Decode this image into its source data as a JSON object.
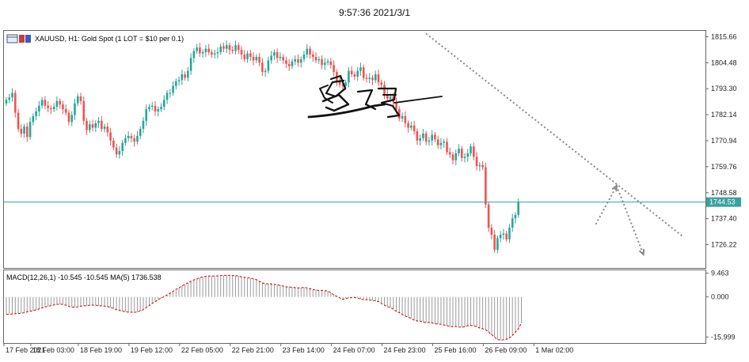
{
  "window": {
    "timestamp": "9:57:36 2021/3/1"
  },
  "chart_header": {
    "symbol_label": "XAUUSD, H1:  Gold Spot (1 LOT = $10 per 0.1)",
    "macd_label": "MACD(12,26,1) -10.545 -10.545 MA(5) 1736.538",
    "current_price_label": "1744.53"
  },
  "icons": {
    "chart_icon": "chart-window-icon"
  },
  "colors": {
    "bull": "#26a69a",
    "bear": "#ef5350",
    "current_line": "#3aa0a0",
    "trendline": "#888888",
    "macd_signal": "#cc0000",
    "macd_hist": "#9a9a9a"
  },
  "chart_data": [
    {
      "type": "candlestick",
      "title": "XAUUSD, H1:  Gold Spot (1 LOT = $10 per 0.1)",
      "y_ticks": [
        "1815.66",
        "1804.48",
        "1793.30",
        "1782.14",
        "1770.94",
        "1759.76",
        "1748.58",
        "1737.40",
        "1726.22"
      ],
      "y_tick_values": [
        1815.66,
        1804.48,
        1793.3,
        1782.14,
        1770.94,
        1759.76,
        1748.58,
        1737.4,
        1726.22
      ],
      "ylim": [
        1716.2,
        1818.2
      ],
      "x_ticks": [
        "17 Feb 2021",
        "18 Feb 03:00",
        "18 Feb 19:00",
        "19 Feb 12:00",
        "22 Feb 05:00",
        "22 Feb 21:00",
        "23 Feb 14:00",
        "24 Feb 07:00",
        "24 Feb 23:00",
        "25 Feb 16:00",
        "26 Feb 09:00",
        "1 Mar 02:00"
      ],
      "x_tick_bar_index": [
        0,
        9,
        25,
        42,
        59,
        76,
        93,
        110,
        127,
        144,
        161,
        178
      ],
      "current_price": 1744.53,
      "close_series": [
        1788.5,
        1789.5,
        1791.5,
        1783.0,
        1776.0,
        1774.0,
        1777.0,
        1772.5,
        1779.0,
        1781.5,
        1783.5,
        1786.0,
        1788.5,
        1786.0,
        1785.0,
        1784.5,
        1785.5,
        1788.0,
        1786.5,
        1784.5,
        1783.0,
        1779.0,
        1782.0,
        1787.0,
        1790.0,
        1788.0,
        1779.5,
        1775.5,
        1778.0,
        1776.5,
        1778.5,
        1779.5,
        1776.0,
        1777.0,
        1774.5,
        1771.0,
        1768.0,
        1765.0,
        1766.5,
        1770.0,
        1772.0,
        1773.0,
        1772.0,
        1770.5,
        1773.0,
        1776.0,
        1779.5,
        1784.5,
        1785.5,
        1786.0,
        1783.5,
        1784.5,
        1785.5,
        1788.5,
        1791.5,
        1791.5,
        1794.5,
        1796.5,
        1797.0,
        1799.5,
        1798.0,
        1801.0,
        1806.5,
        1809.5,
        1811.0,
        1808.5,
        1809.0,
        1810.5,
        1809.0,
        1808.0,
        1808.5,
        1809.0,
        1811.5,
        1810.5,
        1812.0,
        1810.0,
        1809.5,
        1812.0,
        1810.0,
        1808.0,
        1806.0,
        1808.5,
        1807.0,
        1805.5,
        1807.0,
        1804.5,
        1800.5,
        1801.0,
        1805.5,
        1807.5,
        1809.0,
        1806.5,
        1807.0,
        1805.5,
        1804.0,
        1803.0,
        1805.0,
        1806.0,
        1804.5,
        1806.0,
        1808.0,
        1810.5,
        1808.0,
        1807.0,
        1805.5,
        1806.0,
        1803.5,
        1804.5,
        1805.0,
        1803.5,
        1800.5,
        1796.5,
        1795.0,
        1794.5,
        1796.0,
        1801.0,
        1799.5,
        1798.5,
        1801.0,
        1802.5,
        1798.0,
        1797.5,
        1798.0,
        1797.0,
        1799.5,
        1796.0,
        1795.0,
        1791.0,
        1789.0,
        1790.0,
        1787.5,
        1784.5,
        1780.5,
        1781.5,
        1778.5,
        1776.5,
        1777.5,
        1775.0,
        1771.0,
        1772.0,
        1774.0,
        1770.5,
        1771.0,
        1773.5,
        1771.5,
        1769.0,
        1770.0,
        1770.5,
        1766.0,
        1765.0,
        1762.5,
        1765.5,
        1767.5,
        1763.5,
        1764.0,
        1765.5,
        1768.5,
        1764.0,
        1760.0,
        1760.5,
        1759.5,
        1743.5,
        1733.5,
        1730.5,
        1724.0,
        1729.0,
        1730.5,
        1731.0,
        1728.5,
        1733.5,
        1737.5,
        1739.0,
        1744.5
      ],
      "annotations": [
        {
          "type": "trendline",
          "style": "dotted",
          "from": {
            "bar": 141,
            "price": 1817.0
          },
          "to": {
            "bar": 227,
            "price": 1730.0
          }
        },
        {
          "type": "arrow-path",
          "style": "dotted",
          "points": [
            {
              "bar": 198,
              "price": 1735.0
            },
            {
              "bar": 205,
              "price": 1751.5
            },
            {
              "bar": 214,
              "price": 1722.0
            }
          ]
        }
      ]
    },
    {
      "type": "bar",
      "title": "MACD(12,26,1) -10.545 -10.545 MA(5) 1736.538",
      "y_ticks": [
        "9.463",
        "0.000",
        "-15.999"
      ],
      "y_tick_values": [
        9.463,
        0.0,
        -15.999
      ],
      "ylim": [
        -18.4,
        10.6
      ],
      "series": [
        {
          "name": "MACD",
          "kind": "histogram",
          "values": [
            -7.0,
            -6.9,
            -6.8,
            -6.7,
            -6.6,
            -6.5,
            -6.3,
            -6.0,
            -5.8,
            -5.5,
            -5.2,
            -4.8,
            -4.4,
            -4.0,
            -3.7,
            -3.5,
            -3.2,
            -3.0,
            -2.9,
            -3.0,
            -3.3,
            -3.8,
            -4.1,
            -4.1,
            -4.0,
            -3.7,
            -3.6,
            -3.5,
            -3.3,
            -3.3,
            -3.3,
            -3.5,
            -3.6,
            -3.7,
            -3.9,
            -4.2,
            -4.6,
            -5.1,
            -5.4,
            -5.7,
            -5.9,
            -6.1,
            -6.1,
            -6.2,
            -6.0,
            -5.6,
            -5.1,
            -4.3,
            -3.5,
            -2.6,
            -1.9,
            -1.1,
            -0.5,
            0.1,
            0.8,
            1.5,
            2.2,
            3.0,
            3.6,
            4.4,
            5.0,
            5.6,
            6.2,
            6.8,
            7.2,
            7.7,
            8.0,
            8.2,
            8.3,
            8.3,
            8.3,
            8.4,
            8.5,
            8.6,
            8.6,
            8.6,
            8.5,
            8.5,
            8.3,
            8.0,
            7.8,
            7.6,
            7.5,
            7.2,
            6.9,
            6.2,
            5.6,
            5.2,
            5.2,
            5.2,
            5.0,
            4.8,
            4.6,
            4.3,
            4.0,
            4.0,
            3.8,
            3.7,
            3.6,
            3.6,
            3.8,
            3.6,
            3.3,
            3.0,
            2.7,
            2.6,
            2.6,
            2.5,
            2.3,
            1.7,
            0.8,
            0.2,
            -0.4,
            -1.0,
            -0.6,
            -0.4,
            -0.3,
            -0.2,
            -0.4,
            -0.9,
            -1.1,
            -1.1,
            -1.3,
            -1.3,
            -1.6,
            -1.9,
            -2.6,
            -3.3,
            -3.9,
            -4.2,
            -4.9,
            -5.8,
            -6.3,
            -7.0,
            -7.6,
            -8.1,
            -8.6,
            -9.3,
            -9.6,
            -9.7,
            -10.0,
            -10.3,
            -10.2,
            -10.4,
            -10.7,
            -10.8,
            -10.9,
            -11.2,
            -11.5,
            -11.8,
            -11.9,
            -11.8,
            -12.0,
            -12.1,
            -11.9,
            -11.5,
            -11.4,
            -11.6,
            -11.9,
            -12.4,
            -12.7,
            -13.1,
            -14.0,
            -15.1,
            -16.0,
            -17.0,
            -17.2,
            -17.1,
            -16.9,
            -16.4,
            -15.4,
            -14.1,
            -12.7,
            -10.5
          ]
        },
        {
          "name": "MA(5)",
          "kind": "line",
          "values": [
            -7.0,
            -6.9,
            -6.8,
            -6.7,
            -6.6,
            -6.5,
            -6.3,
            -6.0,
            -5.8,
            -5.5,
            -5.2,
            -4.8,
            -4.4,
            -4.0,
            -3.7,
            -3.5,
            -3.2,
            -3.0,
            -2.9,
            -3.0,
            -3.3,
            -3.8,
            -4.1,
            -4.1,
            -4.0,
            -3.7,
            -3.6,
            -3.5,
            -3.3,
            -3.3,
            -3.3,
            -3.5,
            -3.6,
            -3.7,
            -3.9,
            -4.2,
            -4.6,
            -5.1,
            -5.4,
            -5.7,
            -5.9,
            -6.1,
            -6.1,
            -6.2,
            -6.0,
            -5.6,
            -5.1,
            -4.3,
            -3.5,
            -2.6,
            -1.9,
            -1.1,
            -0.5,
            0.1,
            0.8,
            1.5,
            2.2,
            3.0,
            3.6,
            4.4,
            5.0,
            5.6,
            6.2,
            6.8,
            7.2,
            7.7,
            8.0,
            8.2,
            8.3,
            8.3,
            8.3,
            8.4,
            8.5,
            8.6,
            8.6,
            8.6,
            8.5,
            8.5,
            8.3,
            8.0,
            7.8,
            7.6,
            7.5,
            7.2,
            6.9,
            6.2,
            5.6,
            5.2,
            5.2,
            5.2,
            5.0,
            4.8,
            4.6,
            4.3,
            4.0,
            4.0,
            3.8,
            3.7,
            3.6,
            3.6,
            3.8,
            3.6,
            3.3,
            3.0,
            2.7,
            2.6,
            2.6,
            2.5,
            2.3,
            1.7,
            0.8,
            0.2,
            -0.4,
            -1.0,
            -0.6,
            -0.4,
            -0.3,
            -0.2,
            -0.4,
            -0.9,
            -1.1,
            -1.1,
            -1.3,
            -1.3,
            -1.6,
            -1.9,
            -2.6,
            -3.3,
            -3.9,
            -4.2,
            -4.9,
            -5.8,
            -6.3,
            -7.0,
            -7.6,
            -8.1,
            -8.6,
            -9.3,
            -9.6,
            -9.7,
            -10.0,
            -10.3,
            -10.2,
            -10.4,
            -10.7,
            -10.8,
            -10.9,
            -11.2,
            -11.5,
            -11.8,
            -11.9,
            -11.8,
            -12.0,
            -12.1,
            -11.9,
            -11.5,
            -11.4,
            -11.6,
            -11.9,
            -12.4,
            -12.7,
            -13.1,
            -14.0,
            -15.1,
            -16.0,
            -17.0,
            -17.2,
            -17.1,
            -16.9,
            -16.4,
            -15.4,
            -14.1,
            -12.7,
            -10.5
          ]
        }
      ]
    }
  ]
}
